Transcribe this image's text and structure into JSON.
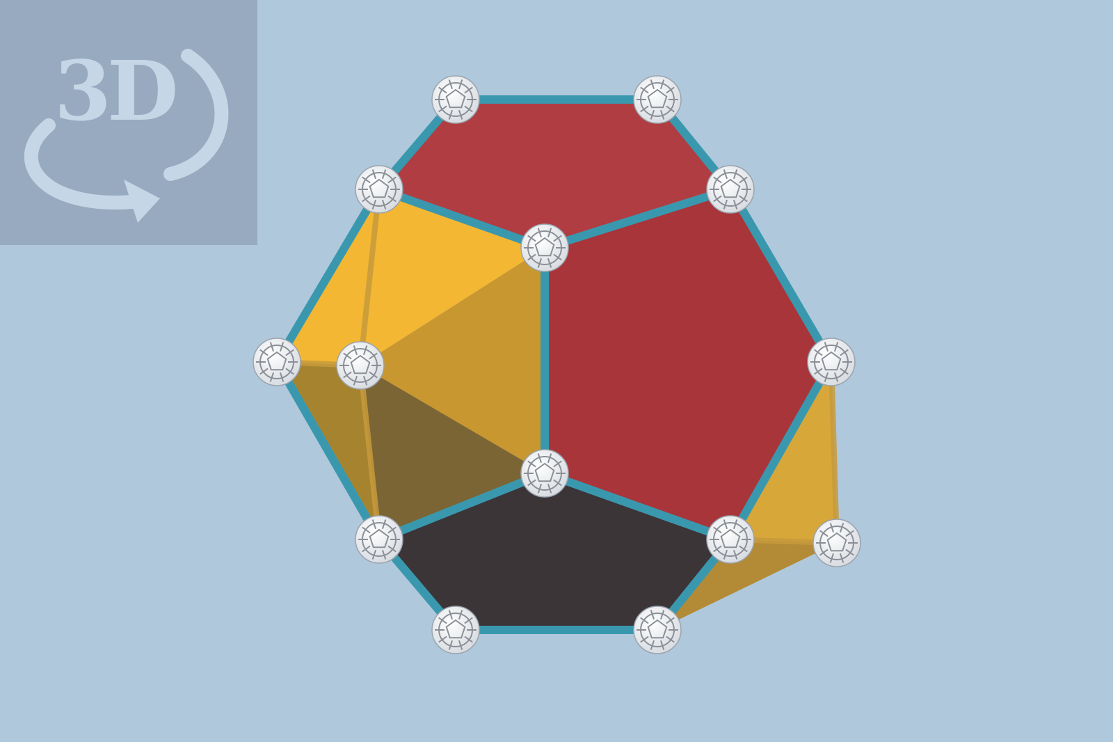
{
  "viewer": {
    "mode_badge": {
      "label": "3D",
      "icon": "3d-rotate-icon"
    },
    "model": {
      "name": "dodecahedron-model",
      "colors": {
        "background": "#b0c8dc",
        "badge": "#97aabf",
        "face_red": "#a8353a",
        "face_red_top": "#b03d42",
        "face_yellow": "#f4b733",
        "face_yellow_dark": "#c8972f",
        "face_shadow": "#7c6534",
        "face_dark": "#3b3538",
        "strut": "#3a98ae",
        "connector": "#ffffff"
      }
    }
  }
}
